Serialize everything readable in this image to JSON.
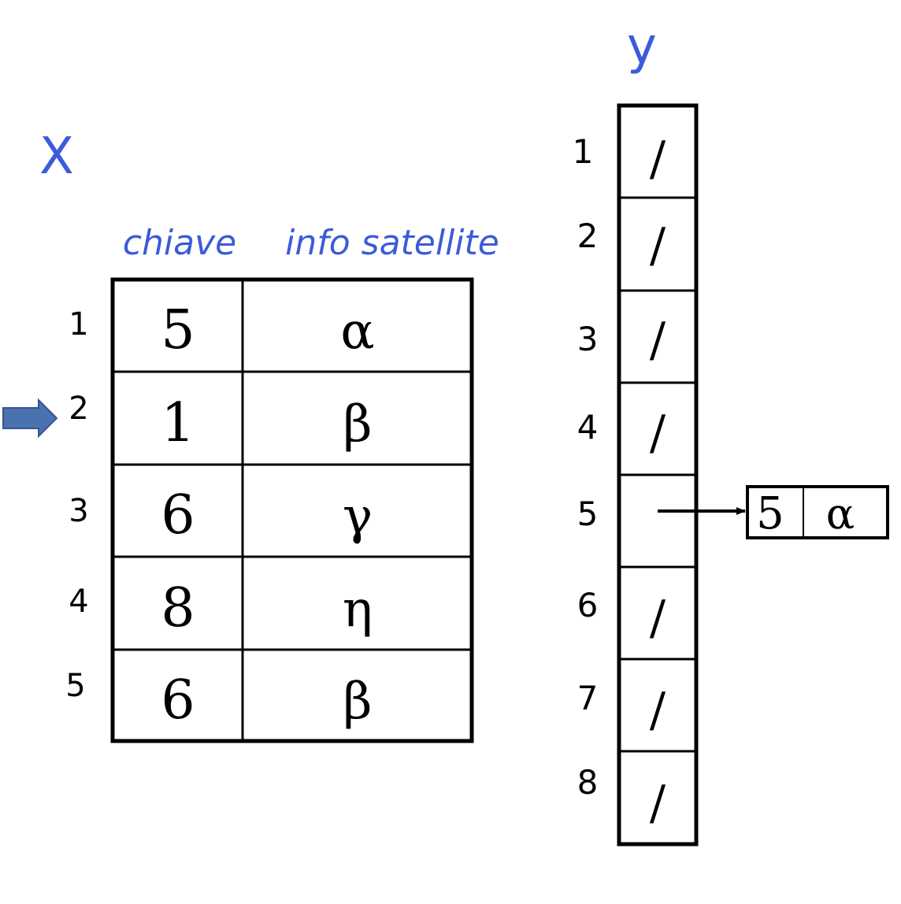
{
  "array_x": {
    "name": "X",
    "column_headers": [
      "chiave",
      "info satellite"
    ],
    "row_indices": [
      "1",
      "2",
      "3",
      "4",
      "5"
    ],
    "rows": [
      {
        "key": "5",
        "info": "α"
      },
      {
        "key": "1",
        "info": "β"
      },
      {
        "key": "6",
        "info": "γ"
      },
      {
        "key": "8",
        "info": "η"
      },
      {
        "key": "6",
        "info": "β"
      }
    ],
    "pointer_row": 2
  },
  "array_y": {
    "name": "y",
    "slot_indices": [
      "1",
      "2",
      "3",
      "4",
      "5",
      "6",
      "7",
      "8"
    ],
    "slots": [
      "/",
      "/",
      "/",
      "/",
      "",
      "/",
      "/",
      "/"
    ],
    "linked_node": {
      "slot": 5,
      "key": "5",
      "info": "α"
    }
  },
  "colors": {
    "label_blue": "#3b5bd9",
    "pointer_arrow": "#4a72b0",
    "line": "#000000"
  }
}
